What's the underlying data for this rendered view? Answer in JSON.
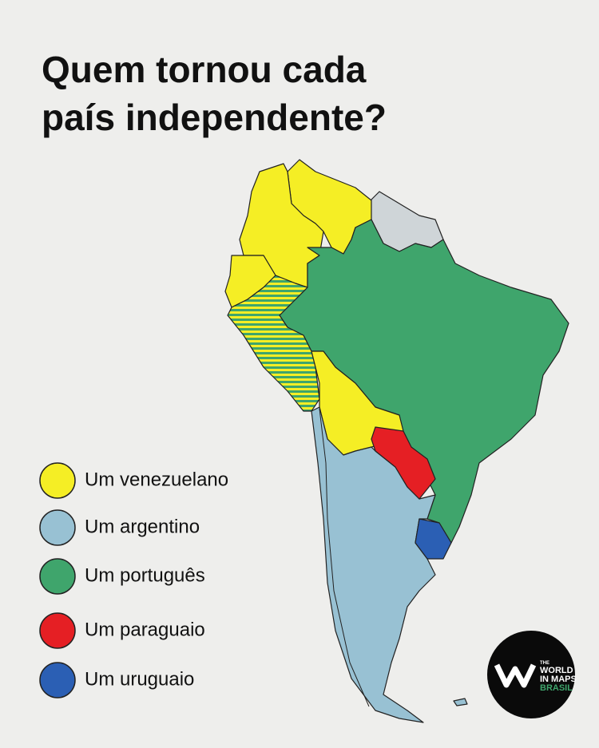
{
  "title_lines": [
    "Quem tornou cada",
    "país independente?"
  ],
  "legend": [
    {
      "label": "Um venezuelano",
      "color": "#f5ee25"
    },
    {
      "label": "Um argentino",
      "color": "#98c1d3"
    },
    {
      "label": "Um português",
      "color": "#3fa56c"
    },
    {
      "label": "Um paraguaio",
      "color": "#e51f24"
    },
    {
      "label": "Um uruguaio",
      "color": "#2b5fb4"
    }
  ],
  "neutral_color": "#cfd5d8",
  "logo": {
    "small": "THE",
    "line1": "WORLD",
    "line2": "IN MAPS",
    "line3": "BRASIL"
  }
}
